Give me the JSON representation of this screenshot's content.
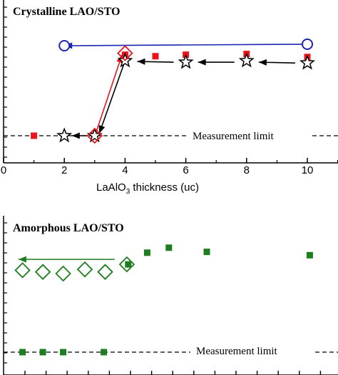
{
  "chart_data": [
    {
      "type": "scatter",
      "title": "Crystalline LAO/STO",
      "xlabel_main": "LaAlO",
      "xlabel_sub": "3",
      "xlabel_rest": " thickness (uc)",
      "xlim": [
        0,
        11
      ],
      "x_ticks": [
        "0",
        "2",
        "4",
        "6",
        "8",
        "10"
      ],
      "annotation": "Measurement limit",
      "y_levels": {
        "limit": 0,
        "high": 1
      },
      "series": [
        {
          "marker": "filled-square",
          "color": "#e8141e",
          "points": [
            [
              1,
              0
            ],
            [
              3,
              0
            ],
            [
              4,
              1.08
            ],
            [
              5,
              1.06
            ],
            [
              6,
              1.08
            ],
            [
              8,
              1.09
            ],
            [
              10,
              1.05
            ]
          ]
        },
        {
          "marker": "open-star",
          "color": "#000000",
          "points": [
            [
              2,
              0
            ],
            [
              3,
              0
            ],
            [
              4,
              1.0
            ],
            [
              6,
              0.98
            ],
            [
              8,
              1.0
            ],
            [
              10,
              0.97
            ]
          ]
        },
        {
          "marker": "open-diamond",
          "color": "#e8141e",
          "points": [
            [
              3,
              0
            ],
            [
              4,
              1.1
            ]
          ]
        },
        {
          "marker": "open-circle",
          "color": "#1f25b3",
          "points": [
            [
              2,
              1.2
            ],
            [
              10,
              1.22
            ]
          ]
        }
      ],
      "arrows": [
        {
          "color": "#1f25b3",
          "from": [
            10,
            1.22
          ],
          "to": [
            2,
            1.2
          ]
        },
        {
          "color": "#000000",
          "from": [
            9.6,
            0.97
          ],
          "to": [
            8.4,
            0.98
          ]
        },
        {
          "color": "#000000",
          "from": [
            7.6,
            0.98
          ],
          "to": [
            6.4,
            0.98
          ]
        },
        {
          "color": "#000000",
          "from": [
            5.6,
            0.98
          ],
          "to": [
            4.4,
            0.99
          ]
        },
        {
          "color": "#000000",
          "from": [
            4,
            1.0
          ],
          "to": [
            3.15,
            0.03
          ]
        },
        {
          "color": "#000000",
          "from": [
            2.75,
            0
          ],
          "to": [
            2.25,
            0
          ]
        },
        {
          "color": "#e8141e",
          "from": [
            3.05,
            0.05
          ],
          "to": [
            3.9,
            1.08
          ]
        }
      ]
    },
    {
      "type": "scatter",
      "title": "Amorphous LAO/STO",
      "annotation": "Measurement limit",
      "xlim": [
        0,
        11
      ],
      "y_levels": {
        "limit": 0,
        "high": 1
      },
      "series": [
        {
          "marker": "filled-square",
          "color": "#1e7d1e",
          "points": [
            [
              0.7,
              0
            ],
            [
              1.45,
              0
            ],
            [
              2.2,
              0
            ],
            [
              3.7,
              0
            ],
            [
              4.6,
              1.05
            ],
            [
              5.3,
              1.19
            ],
            [
              6.1,
              1.25
            ],
            [
              7.5,
              1.2
            ],
            [
              11.3,
              1.16
            ]
          ]
        },
        {
          "marker": "open-diamond",
          "color": "#1e7d1e",
          "points": [
            [
              0.7,
              0.98
            ],
            [
              1.45,
              0.96
            ],
            [
              2.2,
              0.94
            ],
            [
              3.0,
              0.99
            ],
            [
              3.75,
              0.96
            ],
            [
              4.55,
              1.05
            ]
          ]
        }
      ],
      "arrows": [
        {
          "color": "#1e7d1e",
          "from": [
            4.1,
            1.11
          ],
          "to": [
            0.55,
            1.11
          ]
        }
      ]
    }
  ]
}
